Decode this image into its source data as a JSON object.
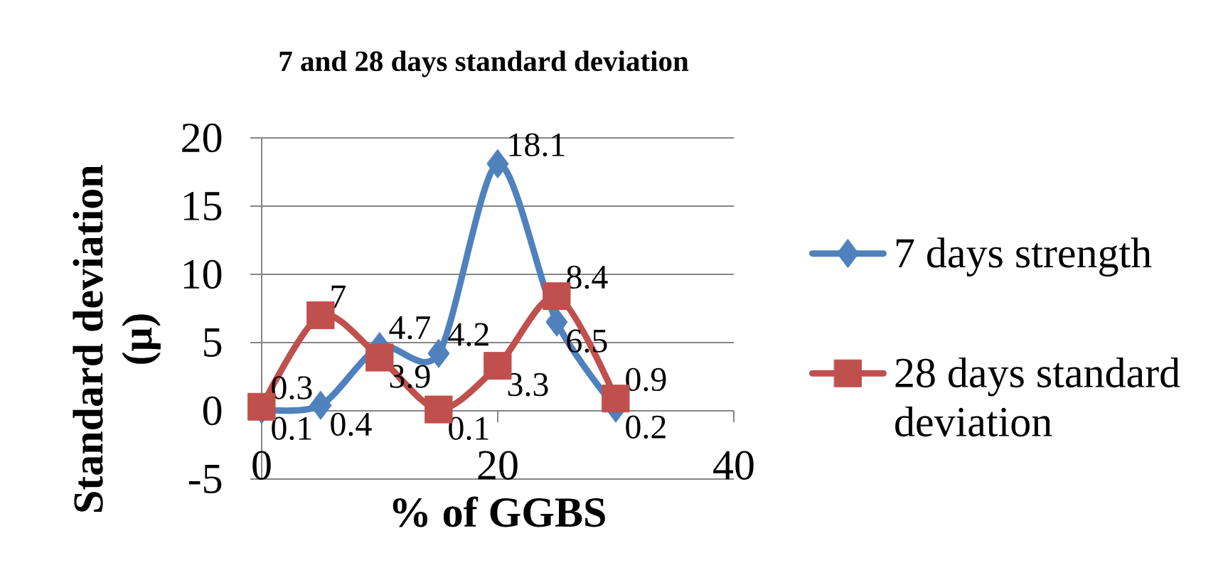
{
  "chart_data": {
    "type": "line",
    "title": "7 and 28 days standard deviation",
    "xlabel": "% of GGBS",
    "ylabel": "Standard deviation (µ)",
    "x": [
      0,
      5,
      10,
      15,
      20,
      25,
      30
    ],
    "series": [
      {
        "name": "7 days strength",
        "color": "#4f81bd",
        "marker": "diamond",
        "values": [
          0.1,
          0.4,
          4.7,
          4.2,
          18.1,
          6.5,
          0.2
        ]
      },
      {
        "name": "28 days standard deviation",
        "color": "#c0504d",
        "marker": "square",
        "values": [
          0.3,
          7,
          3.9,
          0.1,
          3.3,
          8.4,
          0.9
        ]
      }
    ],
    "xlim": [
      0,
      40
    ],
    "xticks": [
      0,
      20,
      40
    ],
    "ylim": [
      -5,
      20
    ],
    "yticks": [
      -5,
      0,
      5,
      10,
      15,
      20
    ],
    "grid": "y",
    "legend": "right",
    "data_labels": true
  }
}
